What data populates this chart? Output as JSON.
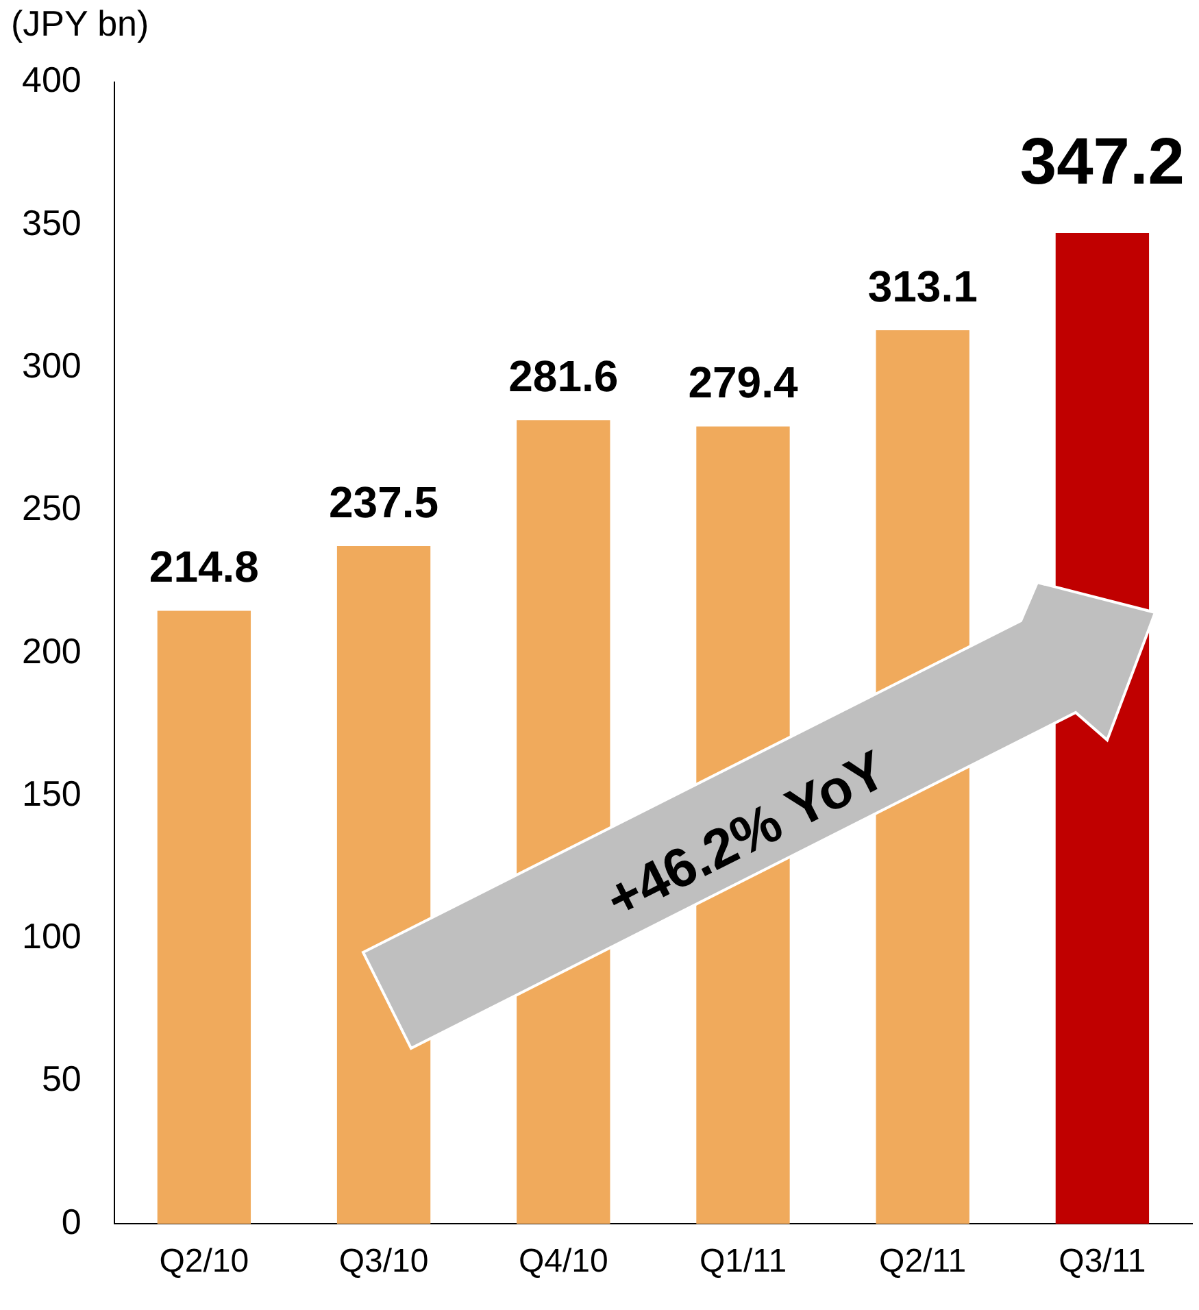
{
  "chart_data": {
    "type": "bar",
    "ylabel": "(JPY bn)",
    "categories": [
      "Q2/10",
      "Q3/10",
      "Q4/10",
      "Q1/11",
      "Q2/11",
      "Q3/11"
    ],
    "values": [
      214.8,
      237.5,
      281.6,
      279.4,
      313.1,
      347.2
    ],
    "colors": [
      "#f0aa5c",
      "#f0aa5c",
      "#f0aa5c",
      "#f0aa5c",
      "#f0aa5c",
      "#c00000"
    ],
    "ylim": [
      0,
      400
    ],
    "yticks": [
      0,
      50,
      100,
      150,
      200,
      250,
      300,
      350,
      400
    ],
    "grid": false,
    "legend": false,
    "data_labels": true,
    "annotations": [
      "+46.2% YoY"
    ]
  }
}
